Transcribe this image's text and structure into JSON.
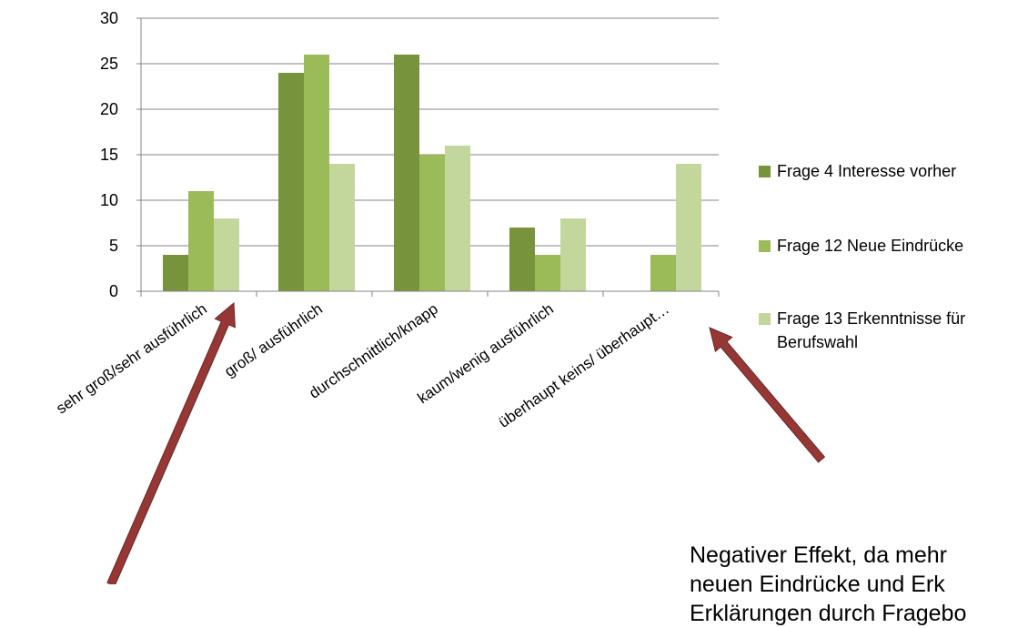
{
  "chart_data": {
    "type": "bar",
    "categories": [
      "sehr groß/sehr ausführlich",
      "groß/ ausführlich",
      "durchschnittlich/knapp",
      "kaum/wenig ausführlich",
      "überhaupt keins/ überhaupt…"
    ],
    "series": [
      {
        "name": "Frage 4 Interesse vorher",
        "values": [
          4,
          24,
          26,
          7,
          0
        ],
        "color": "#77933c"
      },
      {
        "name": "Frage 12 Neue Eindrücke",
        "values": [
          11,
          26,
          15,
          4,
          4
        ],
        "color": "#9bbb59"
      },
      {
        "name_lines": [
          "Frage 13 Erkenntnisse für",
          "Berufswahl"
        ],
        "name": "Frage 13 Erkenntnisse für Berufswahl",
        "values": [
          8,
          14,
          16,
          8,
          14
        ],
        "color": "#c3d69b"
      }
    ],
    "ylim": [
      0,
      30
    ],
    "yticks": [
      "0",
      "5",
      "10",
      "15",
      "20",
      "25",
      "30"
    ],
    "grid": true,
    "legend_position": "right"
  },
  "annotation": {
    "lines": [
      "Negativer Effekt, da mehr",
      "neuen Eindrücke und Erk",
      "Erklärungen durch Fragebo"
    ]
  },
  "arrow_color": "#953735"
}
